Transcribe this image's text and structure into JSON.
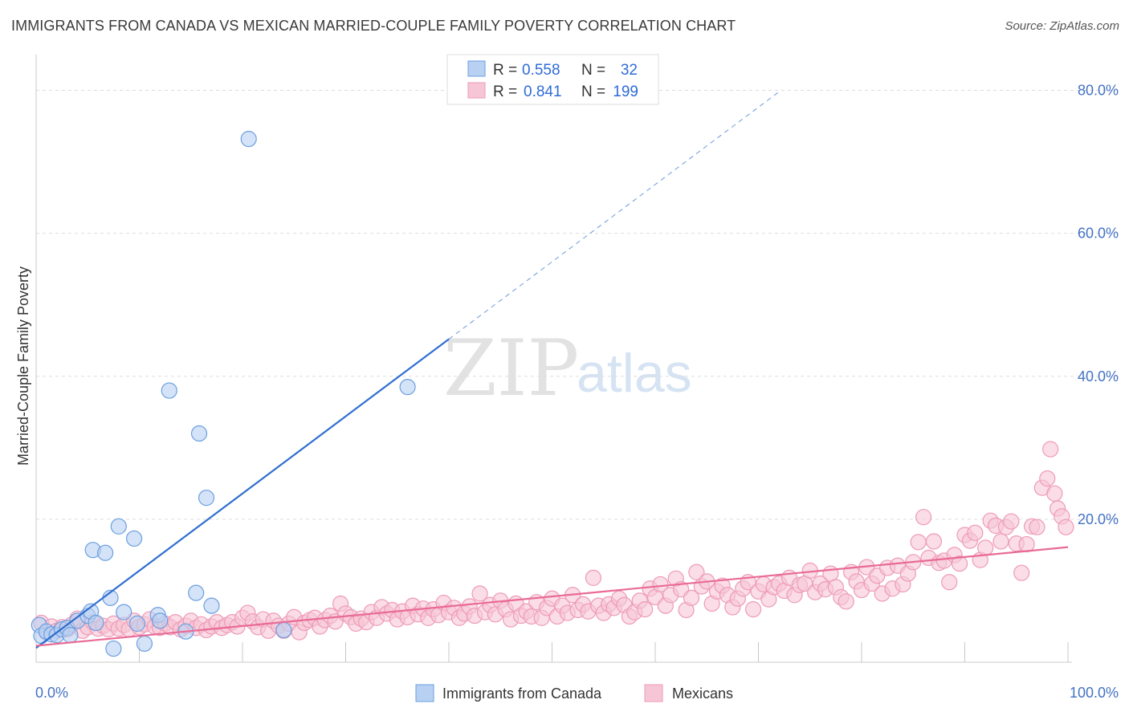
{
  "header": {
    "title": "IMMIGRANTS FROM CANADA VS MEXICAN MARRIED-COUPLE FAMILY POVERTY CORRELATION CHART",
    "source": "Source: ZipAtlas.com"
  },
  "watermark": {
    "zip": "ZIP",
    "atlas": "atlas"
  },
  "colors": {
    "blue_fill": "#b8d1f2",
    "blue_stroke": "#6b9fe0",
    "blue_line": "#2e6fd0",
    "pink_fill": "#f7c6d6",
    "pink_stroke": "#ee9ab6",
    "pink_line": "#e96a96",
    "tick_text": "#4472c4",
    "grid": "#dddddd"
  },
  "legend": {
    "rows": [
      {
        "r_label": "R =",
        "r_value": "0.558",
        "n_label": "N =",
        "n_value": "32"
      },
      {
        "r_label": "R =",
        "r_value": "0.841",
        "n_label": "N =",
        "n_value": "199"
      }
    ]
  },
  "chart_data": {
    "type": "scatter",
    "title": "IMMIGRANTS FROM CANADA VS MEXICAN MARRIED-COUPLE FAMILY POVERTY CORRELATION CHART",
    "xlabel": "",
    "ylabel": "Married-Couple Family Poverty",
    "xlim": [
      0,
      100
    ],
    "ylim": [
      0,
      85
    ],
    "x_tick_labels": [
      "0.0%",
      "100.0%"
    ],
    "y_ticks": [
      20,
      40,
      60,
      80
    ],
    "y_tick_labels": [
      "20.0%",
      "40.0%",
      "60.0%",
      "80.0%"
    ],
    "grid": true,
    "legend_position": "top-center",
    "series": [
      {
        "name": "Immigrants from Canada",
        "R": 0.558,
        "N": 32,
        "trend": {
          "x0": 0,
          "y0": 2.0,
          "x1": 40,
          "y1": 45.2,
          "dash_to_x": 72,
          "dash_to_y": 79.8
        },
        "points": [
          [
            0.3,
            5.2
          ],
          [
            0.5,
            3.7
          ],
          [
            1.0,
            4.3
          ],
          [
            1.5,
            3.9
          ],
          [
            2.0,
            3.8
          ],
          [
            2.5,
            4.6
          ],
          [
            3.0,
            4.8
          ],
          [
            3.3,
            3.8
          ],
          [
            4.0,
            5.8
          ],
          [
            5.0,
            6.5
          ],
          [
            5.3,
            7.1
          ],
          [
            5.8,
            5.5
          ],
          [
            5.5,
            15.7
          ],
          [
            6.7,
            15.3
          ],
          [
            7.2,
            9.0
          ],
          [
            8.0,
            19.0
          ],
          [
            8.5,
            7.0
          ],
          [
            9.5,
            17.3
          ],
          [
            9.8,
            5.4
          ],
          [
            11.8,
            6.6
          ],
          [
            12.0,
            5.8
          ],
          [
            14.5,
            4.3
          ],
          [
            15.5,
            9.7
          ],
          [
            15.8,
            32.0
          ],
          [
            17.0,
            7.9
          ],
          [
            20.6,
            73.2
          ],
          [
            16.5,
            23.0
          ],
          [
            12.9,
            38.0
          ],
          [
            7.5,
            1.9
          ],
          [
            10.5,
            2.6
          ],
          [
            24.0,
            4.5
          ],
          [
            36.0,
            38.5
          ]
        ]
      },
      {
        "name": "Mexicans",
        "R": 0.841,
        "N": 199,
        "trend": {
          "x0": 0,
          "y0": 2.3,
          "x1": 100,
          "y1": 16.1
        },
        "points": [
          [
            0.5,
            5.5
          ],
          [
            1.0,
            4.2
          ],
          [
            1.5,
            5.0
          ],
          [
            2.0,
            4.4
          ],
          [
            2.5,
            4.9
          ],
          [
            3.0,
            4.6
          ],
          [
            3.5,
            5.3
          ],
          [
            4.0,
            6.1
          ],
          [
            4.5,
            4.4
          ],
          [
            5.0,
            4.9
          ],
          [
            5.5,
            5.6
          ],
          [
            6.0,
            4.7
          ],
          [
            6.5,
            5.1
          ],
          [
            7.0,
            4.6
          ],
          [
            7.5,
            5.4
          ],
          [
            8.0,
            4.7
          ],
          [
            8.5,
            5.2
          ],
          [
            9.0,
            4.6
          ],
          [
            9.5,
            5.8
          ],
          [
            10.0,
            4.9
          ],
          [
            10.5,
            5.3
          ],
          [
            11.0,
            6.0
          ],
          [
            11.5,
            5.0
          ],
          [
            12.0,
            4.8
          ],
          [
            12.5,
            5.4
          ],
          [
            13.0,
            4.9
          ],
          [
            13.5,
            5.6
          ],
          [
            14.0,
            4.6
          ],
          [
            14.5,
            5.1
          ],
          [
            15.0,
            5.8
          ],
          [
            15.5,
            4.8
          ],
          [
            16.0,
            5.3
          ],
          [
            16.5,
            4.5
          ],
          [
            17.0,
            5.0
          ],
          [
            17.5,
            5.6
          ],
          [
            18.0,
            4.8
          ],
          [
            18.5,
            5.2
          ],
          [
            19.0,
            5.6
          ],
          [
            19.5,
            5.0
          ],
          [
            20.0,
            6.2
          ],
          [
            20.5,
            6.9
          ],
          [
            21.0,
            5.7
          ],
          [
            21.5,
            4.9
          ],
          [
            22.0,
            6.0
          ],
          [
            22.5,
            4.4
          ],
          [
            23.0,
            5.8
          ],
          [
            23.5,
            5.1
          ],
          [
            24.0,
            4.4
          ],
          [
            24.5,
            5.4
          ],
          [
            25.0,
            6.3
          ],
          [
            25.5,
            4.2
          ],
          [
            26.0,
            5.5
          ],
          [
            26.5,
            5.9
          ],
          [
            27.0,
            6.2
          ],
          [
            27.5,
            5.0
          ],
          [
            28.0,
            5.9
          ],
          [
            28.5,
            6.5
          ],
          [
            29.0,
            5.7
          ],
          [
            29.5,
            8.2
          ],
          [
            30.0,
            6.8
          ],
          [
            30.5,
            6.3
          ],
          [
            31.0,
            5.4
          ],
          [
            31.5,
            6.1
          ],
          [
            32.0,
            5.6
          ],
          [
            32.5,
            7.0
          ],
          [
            33.0,
            6.2
          ],
          [
            33.5,
            7.7
          ],
          [
            34.0,
            6.8
          ],
          [
            34.5,
            7.3
          ],
          [
            35.0,
            6.0
          ],
          [
            35.5,
            7.1
          ],
          [
            36.0,
            6.3
          ],
          [
            36.5,
            7.9
          ],
          [
            37.0,
            6.7
          ],
          [
            37.5,
            7.5
          ],
          [
            38.0,
            6.2
          ],
          [
            38.5,
            7.4
          ],
          [
            39.0,
            6.6
          ],
          [
            39.5,
            8.3
          ],
          [
            40.0,
            7.0
          ],
          [
            40.5,
            7.6
          ],
          [
            41.0,
            6.2
          ],
          [
            41.5,
            6.8
          ],
          [
            42.0,
            7.8
          ],
          [
            42.5,
            6.5
          ],
          [
            43.0,
            9.6
          ],
          [
            43.5,
            7.0
          ],
          [
            44.0,
            8.0
          ],
          [
            44.5,
            6.7
          ],
          [
            45.0,
            8.6
          ],
          [
            45.5,
            7.4
          ],
          [
            46.0,
            6.0
          ],
          [
            46.5,
            8.2
          ],
          [
            47.0,
            6.5
          ],
          [
            47.5,
            7.1
          ],
          [
            48.0,
            6.4
          ],
          [
            48.5,
            8.4
          ],
          [
            49.0,
            6.2
          ],
          [
            49.5,
            7.6
          ],
          [
            50.0,
            8.9
          ],
          [
            50.5,
            6.4
          ],
          [
            51.0,
            7.9
          ],
          [
            51.5,
            6.9
          ],
          [
            52.0,
            9.4
          ],
          [
            52.5,
            7.3
          ],
          [
            53.0,
            8.1
          ],
          [
            53.5,
            7.1
          ],
          [
            54.0,
            11.8
          ],
          [
            54.5,
            7.9
          ],
          [
            55.0,
            6.9
          ],
          [
            55.5,
            8.1
          ],
          [
            56.0,
            7.6
          ],
          [
            56.5,
            8.9
          ],
          [
            57.0,
            8.0
          ],
          [
            57.5,
            6.4
          ],
          [
            58.0,
            7.0
          ],
          [
            58.5,
            8.6
          ],
          [
            59.0,
            7.4
          ],
          [
            59.5,
            10.3
          ],
          [
            60.0,
            9.1
          ],
          [
            60.5,
            10.9
          ],
          [
            61.0,
            7.9
          ],
          [
            61.5,
            9.4
          ],
          [
            62.0,
            11.7
          ],
          [
            62.5,
            10.2
          ],
          [
            63.0,
            7.3
          ],
          [
            63.5,
            9.0
          ],
          [
            64.0,
            12.6
          ],
          [
            64.5,
            10.6
          ],
          [
            65.0,
            11.3
          ],
          [
            65.5,
            8.2
          ],
          [
            66.0,
            9.9
          ],
          [
            66.5,
            10.7
          ],
          [
            67.0,
            9.4
          ],
          [
            67.5,
            7.7
          ],
          [
            68.0,
            8.9
          ],
          [
            68.5,
            10.3
          ],
          [
            69.0,
            11.2
          ],
          [
            69.5,
            7.4
          ],
          [
            70.0,
            9.9
          ],
          [
            70.5,
            10.9
          ],
          [
            71.0,
            8.8
          ],
          [
            71.5,
            10.5
          ],
          [
            72.0,
            11.0
          ],
          [
            72.5,
            10.0
          ],
          [
            73.0,
            11.8
          ],
          [
            73.5,
            9.4
          ],
          [
            74.0,
            10.8
          ],
          [
            74.5,
            11.0
          ],
          [
            75.0,
            12.8
          ],
          [
            75.5,
            9.8
          ],
          [
            76.0,
            11.0
          ],
          [
            76.5,
            10.2
          ],
          [
            77.0,
            12.4
          ],
          [
            77.5,
            10.5
          ],
          [
            78.0,
            9.1
          ],
          [
            78.5,
            8.5
          ],
          [
            79.0,
            12.6
          ],
          [
            79.5,
            11.3
          ],
          [
            80.0,
            10.1
          ],
          [
            80.5,
            13.3
          ],
          [
            81.0,
            11.0
          ],
          [
            81.5,
            12.1
          ],
          [
            82.0,
            9.6
          ],
          [
            82.5,
            13.2
          ],
          [
            83.0,
            10.3
          ],
          [
            83.5,
            13.5
          ],
          [
            84.0,
            10.9
          ],
          [
            84.5,
            12.4
          ],
          [
            85.0,
            14.0
          ],
          [
            85.5,
            16.8
          ],
          [
            86.0,
            20.3
          ],
          [
            86.5,
            14.6
          ],
          [
            87.0,
            16.9
          ],
          [
            87.5,
            13.9
          ],
          [
            88.0,
            14.2
          ],
          [
            88.5,
            11.2
          ],
          [
            89.0,
            15.0
          ],
          [
            89.5,
            13.8
          ],
          [
            90.0,
            17.8
          ],
          [
            90.5,
            17.0
          ],
          [
            91.0,
            18.1
          ],
          [
            91.5,
            14.3
          ],
          [
            92.0,
            16.0
          ],
          [
            92.5,
            19.8
          ],
          [
            93.0,
            19.1
          ],
          [
            93.5,
            16.9
          ],
          [
            94.0,
            18.9
          ],
          [
            94.5,
            19.7
          ],
          [
            95.0,
            16.6
          ],
          [
            95.5,
            12.5
          ],
          [
            96.0,
            16.5
          ],
          [
            96.5,
            19.0
          ],
          [
            97.0,
            18.9
          ],
          [
            97.5,
            24.4
          ],
          [
            98.0,
            25.7
          ],
          [
            98.3,
            29.8
          ],
          [
            98.7,
            23.6
          ],
          [
            99.0,
            21.5
          ],
          [
            99.4,
            20.4
          ],
          [
            99.8,
            18.9
          ]
        ]
      }
    ]
  },
  "bottom_legend": [
    {
      "label": "Immigrants from Canada"
    },
    {
      "label": "Mexicans"
    }
  ]
}
